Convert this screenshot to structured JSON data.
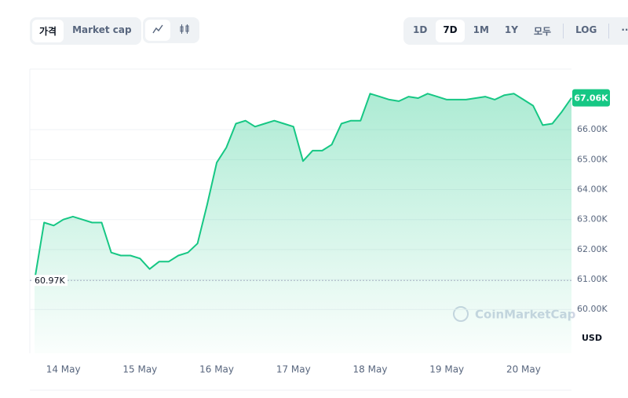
{
  "ui": {
    "left_buttons": [
      "가격",
      "Market cap"
    ],
    "range_buttons": [
      "1D",
      "7D",
      "1M",
      "1Y",
      "모두"
    ],
    "log_button": "LOG",
    "more_button": "···",
    "currency": "USD",
    "watermark": "CoinMarketCap"
  },
  "chart_data": {
    "type": "line",
    "color": "#16c784",
    "categories": [
      null,
      null,
      null,
      "14 May",
      null,
      null,
      null,
      null,
      null,
      null,
      null,
      "15 May",
      null,
      null,
      null,
      null,
      null,
      null,
      null,
      "16 May",
      null,
      null,
      null,
      null,
      null,
      null,
      null,
      "17 May",
      null,
      null,
      null,
      null,
      null,
      null,
      null,
      "18 May",
      null,
      null,
      null,
      null,
      null,
      null,
      null,
      "19 May",
      null,
      null,
      null,
      null,
      null,
      null,
      null,
      "20 May",
      null,
      null,
      null,
      null,
      null
    ],
    "values": [
      60970,
      62900,
      62800,
      63000,
      63100,
      63000,
      62900,
      62900,
      61900,
      61800,
      61800,
      61700,
      61350,
      61600,
      61600,
      61800,
      61900,
      62200,
      63500,
      64900,
      65400,
      66200,
      66300,
      66100,
      66200,
      66300,
      66200,
      66100,
      64950,
      65300,
      65300,
      65500,
      66200,
      66300,
      66300,
      67200,
      67100,
      67000,
      66950,
      67100,
      67050,
      67200,
      67100,
      67000,
      67000,
      67000,
      67050,
      67100,
      67000,
      67150,
      67200,
      67000,
      66800,
      66150,
      66200,
      66600,
      67060
    ],
    "value_labels": [
      "60.97K",
      null,
      null,
      null,
      null,
      null,
      null,
      null,
      null,
      null,
      null,
      null,
      null,
      null,
      null,
      null,
      null,
      null,
      null,
      null,
      null,
      null,
      null,
      null,
      null,
      null,
      null,
      null,
      null,
      null,
      null,
      null,
      null,
      null,
      null,
      null,
      null,
      null,
      null,
      null,
      null,
      null,
      null,
      null,
      null,
      null,
      null,
      null,
      null,
      null,
      null,
      null,
      null,
      null,
      null,
      null,
      "67.06K"
    ],
    "ylim": [
      58540,
      68020
    ],
    "yticks": [
      {
        "value": 60000,
        "label": "60.00K"
      },
      {
        "value": 61000,
        "label": "61.00K"
      },
      {
        "value": 62000,
        "label": "62.00K"
      },
      {
        "value": 63000,
        "label": "63.00K"
      },
      {
        "value": 64000,
        "label": "64.00K"
      },
      {
        "value": 65000,
        "label": "65.00K"
      },
      {
        "value": 66000,
        "label": "66.00K"
      }
    ],
    "grid": true
  }
}
